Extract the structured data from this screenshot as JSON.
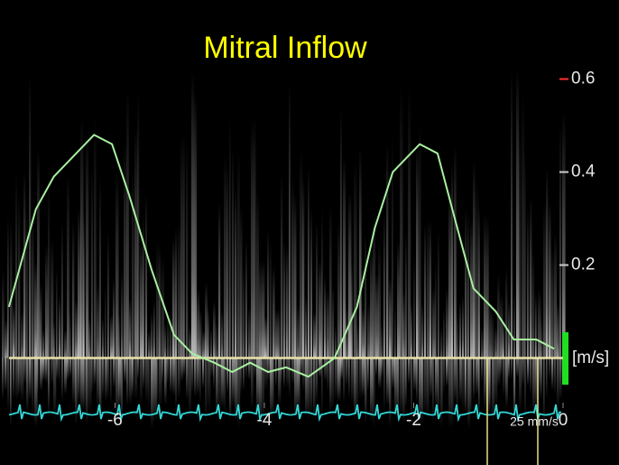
{
  "chart_data": {
    "type": "line",
    "title": "Mitral Inflow",
    "y_label": "[m/s]",
    "annotation": "25 mm/s",
    "x": [
      -7.42,
      -7.06,
      -6.82,
      -6.58,
      -6.28,
      -6.04,
      -5.81,
      -5.51,
      -5.21,
      -4.97,
      -4.67,
      -4.43,
      -4.19,
      -3.95,
      -3.71,
      -3.41,
      -3.06,
      -2.76,
      -2.52,
      -2.28,
      -1.92,
      -1.68,
      -1.45,
      -1.2,
      -0.9,
      -0.66,
      -0.36,
      -0.12
    ],
    "series": [
      {
        "color": "#a8f0a0",
        "values": [
          0.11,
          0.32,
          0.39,
          0.43,
          0.48,
          0.46,
          0.35,
          0.19,
          0.05,
          0.01,
          -0.01,
          -0.03,
          -0.01,
          -0.03,
          -0.02,
          -0.04,
          0.0,
          0.11,
          0.28,
          0.4,
          0.46,
          0.44,
          0.3,
          0.15,
          0.1,
          0.04,
          0.04,
          0.02
        ]
      }
    ],
    "xlim": [
      -7.54,
      0
    ],
    "xticks": [
      -6,
      -4,
      -2,
      0
    ],
    "ylim": [
      -0.23,
      0.77
    ],
    "yticks": [
      0.2,
      0.4,
      0.6
    ]
  }
}
